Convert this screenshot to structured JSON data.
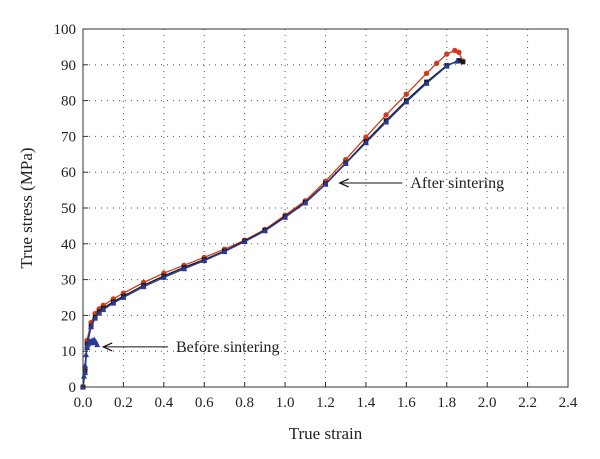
{
  "chart_data": {
    "type": "line",
    "title": "",
    "xlabel": "True strain",
    "ylabel": "True stress (MPa)",
    "xlim": [
      0,
      2.4
    ],
    "ylim": [
      0,
      100
    ],
    "xticks": [
      "0.0",
      "0.2",
      "0.4",
      "0.6",
      "0.8",
      "1.0",
      "1.2",
      "1.4",
      "1.6",
      "1.8",
      "2.0",
      "2.2",
      "2.4"
    ],
    "yticks": [
      "0",
      "10",
      "20",
      "30",
      "40",
      "50",
      "60",
      "70",
      "80",
      "90",
      "100"
    ],
    "grid": true,
    "series": [
      {
        "color": "#d03a1e",
        "marker": "circle",
        "x": [
          0,
          0.01,
          0.02,
          0.04,
          0.06,
          0.08,
          0.1,
          0.15,
          0.2,
          0.3,
          0.4,
          0.5,
          0.6,
          0.7,
          0.8,
          0.9,
          1.0,
          1.1,
          1.2,
          1.3,
          1.4,
          1.5,
          1.6,
          1.7,
          1.75,
          1.8,
          1.84,
          1.86,
          1.88
        ],
        "y": [
          0,
          5,
          13,
          18,
          20.5,
          21.8,
          22.8,
          24.6,
          26.2,
          29.2,
          31.8,
          34.0,
          36.2,
          38.5,
          41.0,
          44.0,
          48.0,
          52.0,
          57.5,
          63.5,
          69.8,
          76.0,
          81.8,
          87.6,
          90.4,
          93.0,
          94.0,
          93.5,
          91.0
        ]
      },
      {
        "color": "#1a1a1a",
        "marker": "square",
        "x": [
          0,
          0.01,
          0.02,
          0.04,
          0.06,
          0.08,
          0.1,
          0.15,
          0.2,
          0.3,
          0.4,
          0.5,
          0.6,
          0.7,
          0.8,
          0.9,
          1.0,
          1.1,
          1.2,
          1.3,
          1.4,
          1.5,
          1.6,
          1.7,
          1.8,
          1.86,
          1.88
        ],
        "y": [
          0,
          4.5,
          12,
          17,
          19.5,
          21.0,
          22.0,
          23.8,
          25.4,
          28.4,
          31.0,
          33.4,
          35.6,
          38.0,
          40.8,
          43.8,
          47.6,
          51.6,
          56.8,
          62.6,
          68.6,
          74.4,
          80.0,
          85.2,
          89.8,
          91.2,
          90.8
        ]
      },
      {
        "color": "#2a3a9a",
        "marker": "triangle",
        "x": [
          0,
          0.01,
          0.02,
          0.04,
          0.06,
          0.08,
          0.1,
          0.15,
          0.2,
          0.3,
          0.4,
          0.5,
          0.6,
          0.7,
          0.8,
          0.9,
          1.0,
          1.1,
          1.2,
          1.3,
          1.4,
          1.5,
          1.6,
          1.7,
          1.8,
          1.85
        ],
        "y": [
          0,
          4,
          11.5,
          16.8,
          19.2,
          20.6,
          21.6,
          23.4,
          25.0,
          28.0,
          30.6,
          33.0,
          35.3,
          37.8,
          40.6,
          43.6,
          47.4,
          51.4,
          56.6,
          62.4,
          68.2,
          74.0,
          79.6,
          84.8,
          89.6,
          91.0
        ]
      },
      {
        "color": "#2a3a9a",
        "marker": "triangle",
        "x": [
          0,
          0.005,
          0.01,
          0.015,
          0.02,
          0.025,
          0.03,
          0.035,
          0.04,
          0.045,
          0.05,
          0.055,
          0.06,
          0.065,
          0.07
        ],
        "y": [
          0,
          3,
          6,
          9,
          11,
          12,
          12.5,
          12.8,
          12.3,
          13.0,
          12.6,
          13.2,
          12.8,
          12.4,
          11.8
        ]
      }
    ],
    "annotations": [
      {
        "text": "After sintering",
        "x": 1.62,
        "y": 56.5,
        "arrow_to": [
          1.27,
          57
        ]
      },
      {
        "text": "Before sintering",
        "x": 0.46,
        "y": 11.2,
        "arrow_to": [
          0.1,
          11.2
        ]
      }
    ]
  }
}
